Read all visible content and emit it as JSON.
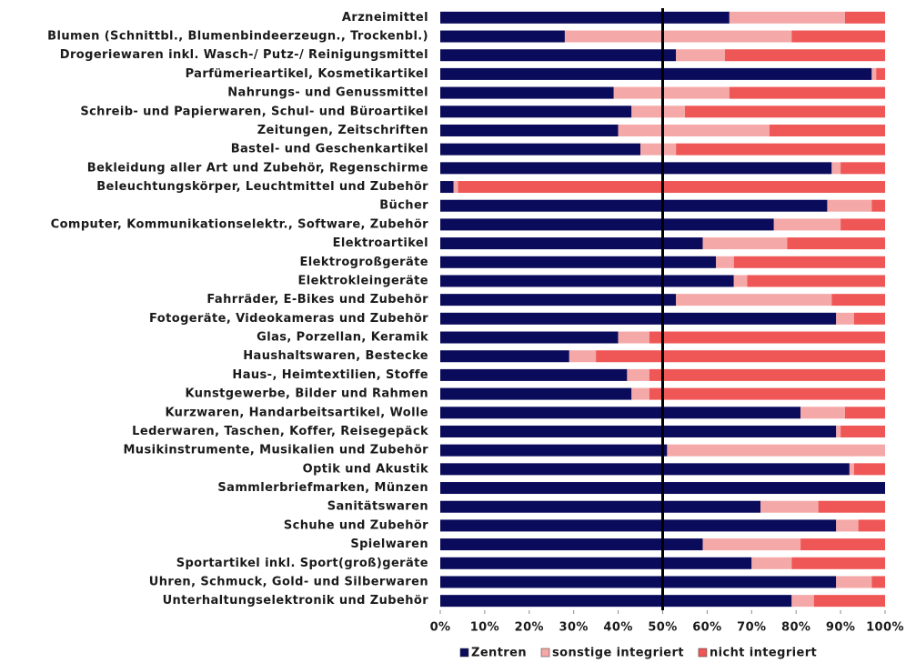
{
  "chart_data": {
    "type": "stacked-barh",
    "categories": [
      "Arzneimittel",
      "Blumen (Schnittbl., Blumenbindeerzeugn., Trockenbl.)",
      "Drogeriewaren inkl. Wasch-/ Putz-/ Reinigungsmittel",
      "Parfümerieartikel, Kosmetikartikel",
      "Nahrungs- und Genussmittel",
      "Schreib- und Papierwaren, Schul- und Büroartikel",
      "Zeitungen, Zeitschriften",
      "Bastel- und Geschenkartikel",
      "Bekleidung aller Art und Zubehör, Regenschirme",
      "Beleuchtungskörper, Leuchtmittel und Zubehör",
      "Bücher",
      "Computer, Kommunikationselektr., Software, Zubehör",
      "Elektroartikel",
      "Elektrogroßgeräte",
      "Elektrokleingeräte",
      "Fahrräder, E-Bikes und Zubehör",
      "Fotogeräte, Videokameras und Zubehör",
      "Glas, Porzellan, Keramik",
      "Haushaltswaren, Bestecke",
      "Haus-, Heimtextilien, Stoffe",
      "Kunstgewerbe, Bilder und Rahmen",
      "Kurzwaren, Handarbeitsartikel, Wolle",
      "Lederwaren, Taschen, Koffer, Reisegepäck",
      "Musikinstrumente, Musikalien und Zubehör",
      "Optik und Akustik",
      "Sammlerbriefmarken, Münzen",
      "Sanitätswaren",
      "Schuhe und Zubehör",
      "Spielwaren",
      "Sportartikel inkl. Sport(groß)geräte",
      "Uhren, Schmuck, Gold- und Silberwaren",
      "Unterhaltungselektronik und Zubehör"
    ],
    "series": [
      {
        "name": "Zentren",
        "color": "#0b0b5c",
        "values": [
          65,
          28,
          53,
          97,
          39,
          43,
          40,
          45,
          88,
          3,
          87,
          75,
          59,
          62,
          66,
          53,
          89,
          40,
          29,
          42,
          43,
          81,
          89,
          51,
          92,
          100,
          72,
          89,
          59,
          70,
          89,
          79
        ]
      },
      {
        "name": "sonstige integriert",
        "color": "#f5a8a8",
        "values": [
          26,
          51,
          11,
          1,
          26,
          12,
          34,
          8,
          2,
          1,
          10,
          15,
          19,
          4,
          3,
          35,
          4,
          7,
          6,
          5,
          4,
          10,
          1,
          49,
          1,
          0,
          13,
          5,
          22,
          9,
          8,
          5
        ]
      },
      {
        "name": "nicht integriert",
        "color": "#ef5656",
        "values": [
          9,
          21,
          36,
          2,
          35,
          45,
          26,
          47,
          10,
          96,
          3,
          10,
          22,
          34,
          31,
          12,
          7,
          53,
          65,
          53,
          53,
          9,
          10,
          0,
          7,
          0,
          15,
          6,
          19,
          21,
          3,
          16
        ]
      }
    ],
    "xlim": [
      0,
      100
    ],
    "xticks": [
      {
        "value": 0,
        "label": "0%"
      },
      {
        "value": 10,
        "label": "10%"
      },
      {
        "value": 20,
        "label": "20%"
      },
      {
        "value": 30,
        "label": "30%"
      },
      {
        "value": 40,
        "label": "40%"
      },
      {
        "value": 50,
        "label": "50%"
      },
      {
        "value": 60,
        "label": "60%"
      },
      {
        "value": 70,
        "label": "70%"
      },
      {
        "value": 80,
        "label": "80%"
      },
      {
        "value": 90,
        "label": "90%"
      },
      {
        "value": 100,
        "label": "100%"
      }
    ],
    "reference_line": 50,
    "legend": "bottom"
  }
}
